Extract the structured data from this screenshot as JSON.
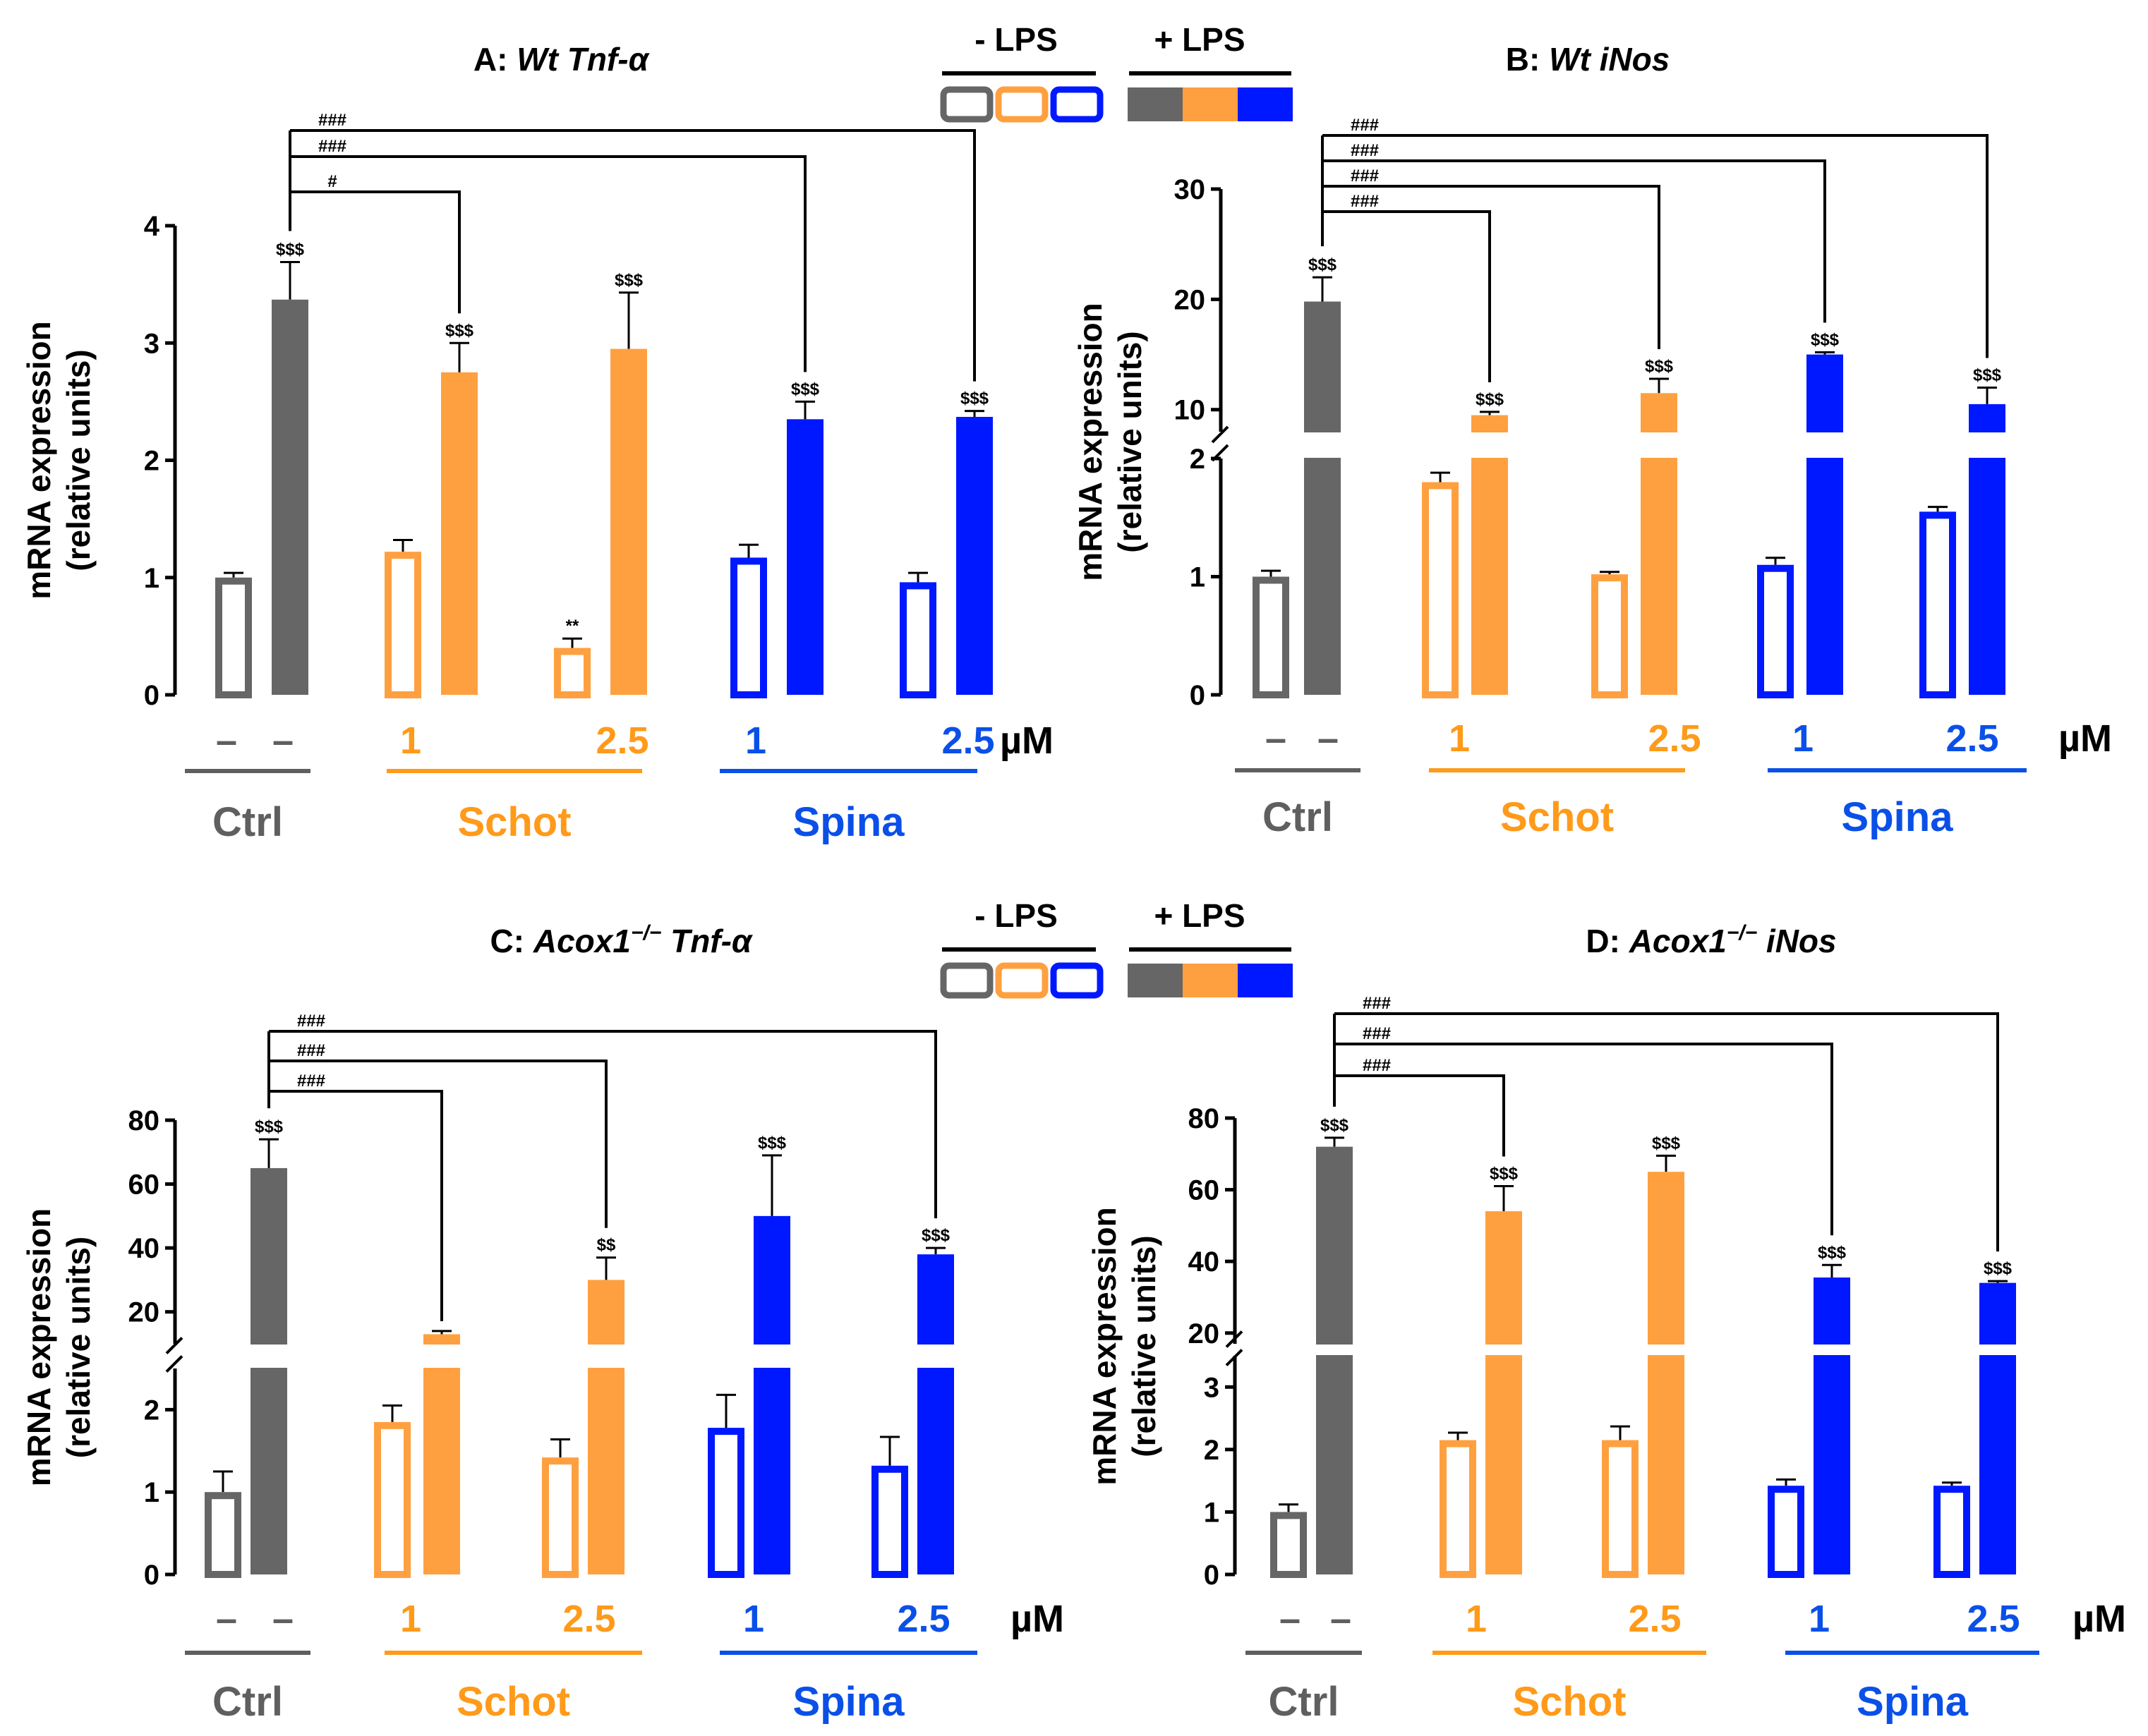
{
  "colors": {
    "ctrl_fill": "#666666",
    "ctrl_stroke": "#666666",
    "ctrl_label": "#5f5f5f",
    "schot": "#ffa040",
    "schot_label": "#ff9a1a",
    "spina": "#0018ff",
    "spina_label": "#0a50e8"
  },
  "legend": {
    "minus_lps": "- LPS",
    "plus_lps": "+ LPS",
    "swatches_minus": [
      {
        "name": "ctrl",
        "style": "open"
      },
      {
        "name": "schot",
        "style": "open"
      },
      {
        "name": "spina",
        "style": "open"
      }
    ],
    "swatches_plus": [
      {
        "name": "ctrl",
        "style": "filled"
      },
      {
        "name": "schot",
        "style": "filled"
      },
      {
        "name": "spina",
        "style": "filled"
      }
    ]
  },
  "chart_data": [
    {
      "id": "A",
      "type": "bar",
      "title_prefix": "A: ",
      "title_gene": "Wt Tnf-α",
      "ylabel_line1": "mRNA expression",
      "ylabel_line2": "(relative units)",
      "ylim": [
        0,
        4
      ],
      "yticks": [
        "0",
        "1",
        "2",
        "3",
        "4"
      ],
      "broken_axis": false,
      "dose_labels": [
        "–",
        "–",
        "1",
        "2.5",
        "1",
        "2.5"
      ],
      "unit": "µM",
      "groups": [
        "Ctrl",
        "Schot",
        "Spina"
      ],
      "bars": [
        {
          "group": "ctrl",
          "lps": false,
          "value": 1.0,
          "error": 0.04,
          "label": ""
        },
        {
          "group": "ctrl",
          "lps": true,
          "value": 3.37,
          "error": 0.32,
          "label": "$$$"
        },
        {
          "group": "schot",
          "lps": false,
          "value": 1.22,
          "error": 0.1,
          "label": ""
        },
        {
          "group": "schot",
          "lps": true,
          "value": 2.75,
          "error": 0.25,
          "label": "$$$"
        },
        {
          "group": "schot",
          "lps": false,
          "value": 0.4,
          "error": 0.08,
          "label": "**"
        },
        {
          "group": "schot",
          "lps": true,
          "value": 2.95,
          "error": 0.48,
          "label": "$$$"
        },
        {
          "group": "spina",
          "lps": false,
          "value": 1.17,
          "error": 0.11,
          "label": ""
        },
        {
          "group": "spina",
          "lps": true,
          "value": 2.35,
          "error": 0.15,
          "label": "$$$"
        },
        {
          "group": "spina",
          "lps": false,
          "value": 0.96,
          "error": 0.08,
          "label": ""
        },
        {
          "group": "spina",
          "lps": true,
          "value": 2.37,
          "error": 0.05,
          "label": "$$$"
        }
      ],
      "comparisons": [
        {
          "to": 3,
          "label": "#"
        },
        {
          "to": 7,
          "label": "###"
        },
        {
          "to": 9,
          "label": "###"
        }
      ]
    },
    {
      "id": "B",
      "type": "bar",
      "title_prefix": "B: ",
      "title_gene": "Wt iNos",
      "ylabel_line1": "mRNA expression",
      "ylabel_line2": "(relative units)",
      "broken_axis": true,
      "lower_range": [
        0,
        2
      ],
      "lower_ticks": [
        "0",
        "1",
        "2"
      ],
      "upper_range": [
        8,
        30
      ],
      "upper_ticks": [
        "10",
        "20",
        "30"
      ],
      "dose_labels": [
        "–",
        "–",
        "1",
        "2.5",
        "1",
        "2.5"
      ],
      "unit": "µM",
      "groups": [
        "Ctrl",
        "Schot",
        "Spina"
      ],
      "bars": [
        {
          "group": "ctrl",
          "lps": false,
          "value": 1.0,
          "error": 0.05,
          "label": ""
        },
        {
          "group": "ctrl",
          "lps": true,
          "value": 19.8,
          "error": 2.2,
          "label": "$$$"
        },
        {
          "group": "schot",
          "lps": false,
          "value": 1.8,
          "error": 0.08,
          "label": ""
        },
        {
          "group": "schot",
          "lps": true,
          "value": 9.5,
          "error": 0.3,
          "label": "$$$"
        },
        {
          "group": "schot",
          "lps": false,
          "value": 1.02,
          "error": 0.02,
          "label": ""
        },
        {
          "group": "schot",
          "lps": true,
          "value": 11.5,
          "error": 1.3,
          "label": "$$$"
        },
        {
          "group": "spina",
          "lps": false,
          "value": 1.1,
          "error": 0.06,
          "label": ""
        },
        {
          "group": "spina",
          "lps": true,
          "value": 15.0,
          "error": 0.2,
          "label": "$$$"
        },
        {
          "group": "spina",
          "lps": false,
          "value": 1.55,
          "error": 0.04,
          "label": ""
        },
        {
          "group": "spina",
          "lps": true,
          "value": 10.5,
          "error": 1.5,
          "label": "$$$"
        }
      ],
      "comparisons": [
        {
          "to": 3,
          "label": "###"
        },
        {
          "to": 5,
          "label": "###"
        },
        {
          "to": 7,
          "label": "###"
        },
        {
          "to": 9,
          "label": "###"
        }
      ]
    },
    {
      "id": "C",
      "type": "bar",
      "title_prefix": "C: ",
      "title_gene": "Acox1",
      "title_sup": "−/−",
      "title_gene2": " Tnf-α",
      "ylabel_line1": "mRNA expression",
      "ylabel_line2": "(relative units)",
      "broken_axis": true,
      "lower_range": [
        0,
        2.5
      ],
      "lower_ticks": [
        "0",
        "1",
        "2"
      ],
      "upper_range": [
        10,
        80
      ],
      "upper_ticks": [
        "20",
        "40",
        "60",
        "80"
      ],
      "dose_labels": [
        "–",
        "–",
        "1",
        "2.5",
        "1",
        "2.5"
      ],
      "unit": "µM",
      "groups": [
        "Ctrl",
        "Schot",
        "Spina"
      ],
      "bars": [
        {
          "group": "ctrl",
          "lps": false,
          "value": 1.0,
          "error": 0.25,
          "label": ""
        },
        {
          "group": "ctrl",
          "lps": true,
          "value": 65,
          "error": 9,
          "label": "$$$"
        },
        {
          "group": "schot",
          "lps": false,
          "value": 1.85,
          "error": 0.2,
          "label": ""
        },
        {
          "group": "schot",
          "lps": true,
          "value": 13,
          "error": 1,
          "label": ""
        },
        {
          "group": "schot",
          "lps": false,
          "value": 1.42,
          "error": 0.22,
          "label": ""
        },
        {
          "group": "schot",
          "lps": true,
          "value": 30,
          "error": 7,
          "label": "$$"
        },
        {
          "group": "spina",
          "lps": false,
          "value": 1.78,
          "error": 0.4,
          "label": ""
        },
        {
          "group": "spina",
          "lps": true,
          "value": 50,
          "error": 19,
          "label": "$$$"
        },
        {
          "group": "spina",
          "lps": false,
          "value": 1.32,
          "error": 0.35,
          "label": ""
        },
        {
          "group": "spina",
          "lps": true,
          "value": 38,
          "error": 2,
          "label": "$$$"
        }
      ],
      "comparisons": [
        {
          "to": 3,
          "label": "###"
        },
        {
          "to": 5,
          "label": "###"
        },
        {
          "to": 9,
          "label": "###"
        }
      ]
    },
    {
      "id": "D",
      "type": "bar",
      "title_prefix": "D: ",
      "title_gene": "Acox1",
      "title_sup": "−/−",
      "title_gene2": " iNos",
      "ylabel_line1": "mRNA expression",
      "ylabel_line2": "(relative units)",
      "broken_axis": true,
      "lower_range": [
        0,
        3.5
      ],
      "lower_ticks": [
        "0",
        "1",
        "2",
        "3"
      ],
      "upper_range": [
        17,
        80
      ],
      "upper_ticks": [
        "20",
        "40",
        "60",
        "80"
      ],
      "dose_labels": [
        "–",
        "–",
        "1",
        "2.5",
        "1",
        "2.5"
      ],
      "unit": "µM",
      "groups": [
        "Ctrl",
        "Schot",
        "Spina"
      ],
      "bars": [
        {
          "group": "ctrl",
          "lps": false,
          "value": 1.0,
          "error": 0.12,
          "label": ""
        },
        {
          "group": "ctrl",
          "lps": true,
          "value": 72,
          "error": 2.5,
          "label": "$$$"
        },
        {
          "group": "schot",
          "lps": false,
          "value": 2.15,
          "error": 0.12,
          "label": ""
        },
        {
          "group": "schot",
          "lps": true,
          "value": 54,
          "error": 7,
          "label": "$$$"
        },
        {
          "group": "schot",
          "lps": false,
          "value": 2.15,
          "error": 0.22,
          "label": ""
        },
        {
          "group": "schot",
          "lps": true,
          "value": 65,
          "error": 4.5,
          "label": "$$$"
        },
        {
          "group": "spina",
          "lps": false,
          "value": 1.42,
          "error": 0.1,
          "label": ""
        },
        {
          "group": "spina",
          "lps": true,
          "value": 35.5,
          "error": 3.5,
          "label": "$$$"
        },
        {
          "group": "spina",
          "lps": false,
          "value": 1.42,
          "error": 0.05,
          "label": ""
        },
        {
          "group": "spina",
          "lps": true,
          "value": 34,
          "error": 0.5,
          "label": "$$$"
        }
      ],
      "comparisons": [
        {
          "to": 3,
          "label": "###"
        },
        {
          "to": 7,
          "label": "###"
        },
        {
          "to": 9,
          "label": "###"
        }
      ]
    }
  ]
}
